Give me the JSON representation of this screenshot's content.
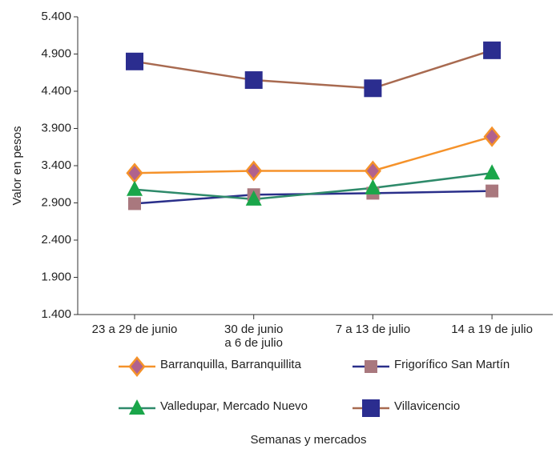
{
  "chart_data": {
    "type": "line",
    "y_label": "Valor en pesos",
    "x_label": "Semanas y mercados",
    "categories": [
      "23 a 29 de junio",
      "30 de junio\na 6 de julio",
      "7 a 13 de julio",
      "14 a 19 de julio"
    ],
    "series": [
      {
        "name": "Barranquilla, Barranquillita",
        "color": "#f5922a",
        "marker": "diamond",
        "marker_color": "#b0628e",
        "values": [
          3300,
          3330,
          3330,
          3790
        ]
      },
      {
        "name": "Frigorífico San Martín",
        "color": "#2a2f8a",
        "marker": "square",
        "marker_color": "#a9787e",
        "values": [
          2890,
          3010,
          3030,
          3060
        ]
      },
      {
        "name": "Valledupar, Mercado Nuevo",
        "color": "#2e8a6a",
        "marker": "triangle",
        "marker_color": "#1aa64a",
        "values": [
          3080,
          2950,
          3100,
          3300
        ]
      },
      {
        "name": "Villavicencio",
        "color": "#a86a50",
        "marker": "square",
        "marker_color": "#2b2d8f",
        "values": [
          4800,
          4550,
          4440,
          4950
        ]
      }
    ],
    "ylim": [
      1400,
      5400
    ],
    "yticks": [
      {
        "value": 1400,
        "label": "1.400"
      },
      {
        "value": 1900,
        "label": "1.900"
      },
      {
        "value": 2400,
        "label": "2.400"
      },
      {
        "value": 2900,
        "label": "2.900"
      },
      {
        "value": 3400,
        "label": "3.400"
      },
      {
        "value": 3900,
        "label": "3.900"
      },
      {
        "value": 4400,
        "label": "4.400"
      },
      {
        "value": 4900,
        "label": "4.900"
      },
      {
        "value": 5400,
        "label": "5.400"
      }
    ],
    "grid": false
  }
}
